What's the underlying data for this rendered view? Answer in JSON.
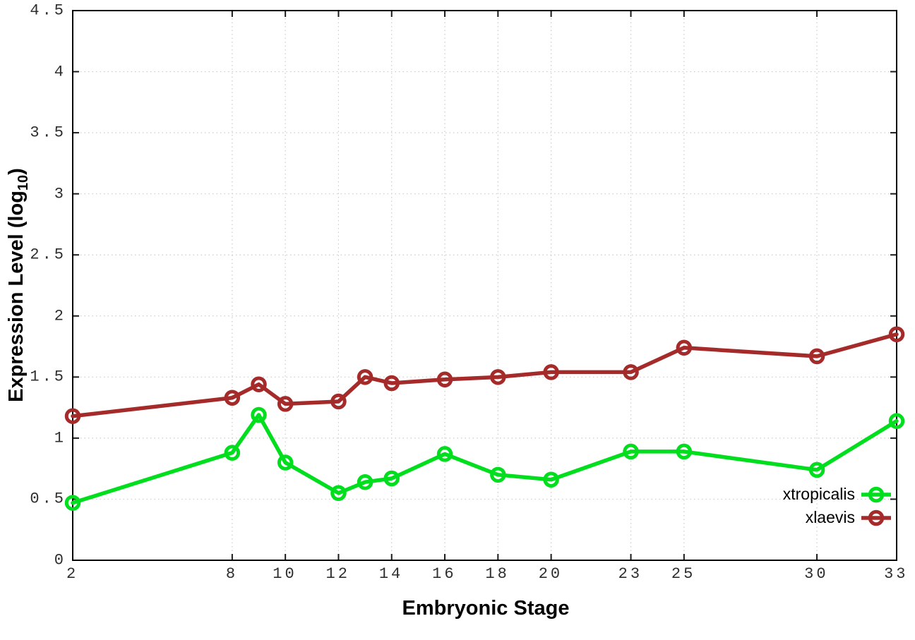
{
  "labels": {
    "ylabel_main": "Expression Level (log",
    "ylabel_sub": "10",
    "ylabel_close": ")"
  },
  "chart_data": {
    "type": "line",
    "title": "",
    "xlabel": "Embryonic Stage",
    "ylabel": "Expression Level (log10)",
    "xlim": [
      2,
      33
    ],
    "ylim": [
      0,
      4.5
    ],
    "grid": true,
    "legend_position": "inside-bottom-right",
    "x": [
      2,
      8,
      9,
      10,
      12,
      13,
      14,
      16,
      18,
      20,
      23,
      25,
      30,
      33
    ],
    "xticks": [
      2,
      8,
      10,
      12,
      14,
      16,
      18,
      20,
      23,
      25,
      30,
      33
    ],
    "xtick_labels": [
      "2",
      "8",
      "10",
      "12",
      "14",
      "16",
      "18",
      "20",
      "23",
      "25",
      "30",
      "33"
    ],
    "yticks": [
      0,
      0.5,
      1,
      1.5,
      2,
      2.5,
      3,
      3.5,
      4,
      4.5
    ],
    "ytick_labels": [
      "0",
      "0.5",
      "1",
      "1.5",
      "2",
      "2.5",
      "3",
      "3.5",
      "4",
      "4.5"
    ],
    "series": [
      {
        "name": "xtropicalis",
        "color": "#00DE1E",
        "values": [
          0.47,
          0.88,
          1.19,
          0.8,
          0.55,
          0.64,
          0.67,
          0.87,
          0.7,
          0.66,
          0.89,
          0.89,
          0.74,
          1.14
        ]
      },
      {
        "name": "xlaevis",
        "color": "#A52A2A",
        "values": [
          1.18,
          1.33,
          1.44,
          1.28,
          1.3,
          1.5,
          1.45,
          1.48,
          1.5,
          1.54,
          1.54,
          1.74,
          1.67,
          1.85
        ]
      }
    ]
  },
  "style": {
    "background": "#ffffff",
    "grid_color": "#cccccc",
    "axis_color": "#000000",
    "tick_text_color": "#2e2e2e"
  }
}
